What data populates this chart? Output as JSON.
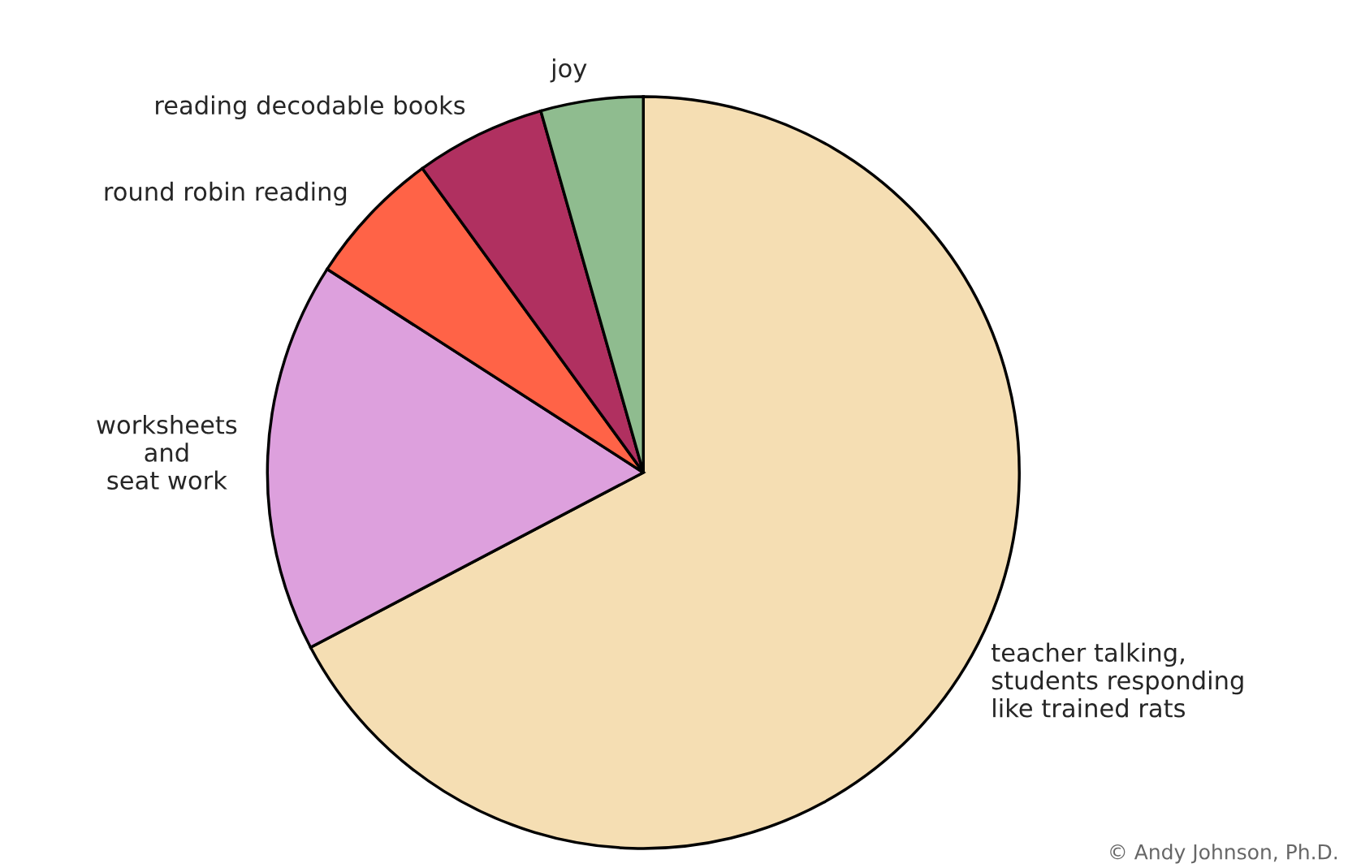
{
  "chart_data": {
    "type": "pie",
    "categories": [
      "teacher talking,\nstudents responding\nlike trained rats",
      "worksheets\nand\nseat work",
      "round robin reading",
      "reading decodable books",
      "joy"
    ],
    "values": [
      67.3,
      16.8,
      5.9,
      5.6,
      4.4
    ],
    "colors": [
      "#f5deb3",
      "#dda0dd",
      "#ff6347",
      "#b03060",
      "#8fbc8f"
    ],
    "annotations": [
      "© Andy Johnson, Ph.D."
    ]
  }
}
